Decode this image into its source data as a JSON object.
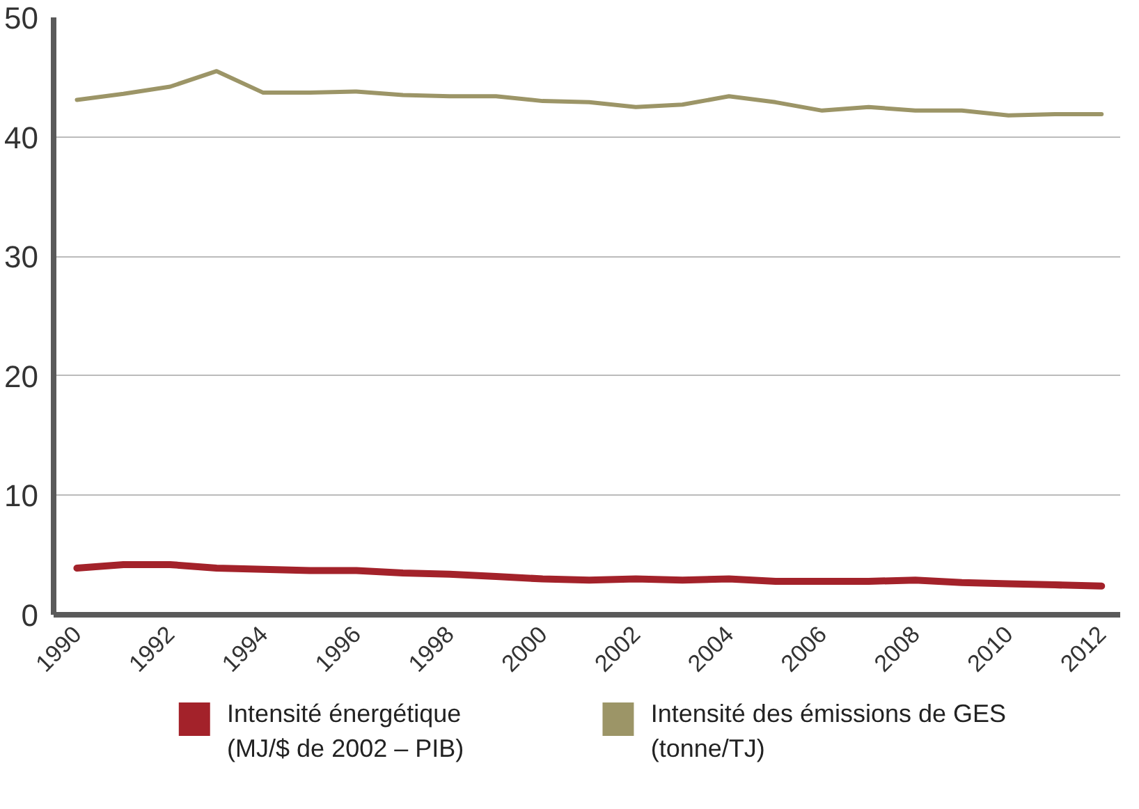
{
  "chart_data": {
    "type": "line",
    "x": [
      1990,
      1991,
      1992,
      1993,
      1994,
      1995,
      1996,
      1997,
      1998,
      1999,
      2000,
      2001,
      2002,
      2003,
      2004,
      2005,
      2006,
      2007,
      2008,
      2009,
      2010,
      2011,
      2012
    ],
    "series": [
      {
        "name": "Intensité énergétique\n(MJ/$ de 2002 – PIB)",
        "color": "#a3222a",
        "values": [
          3.9,
          4.2,
          4.2,
          3.9,
          3.8,
          3.7,
          3.7,
          3.5,
          3.4,
          3.2,
          3.0,
          2.9,
          3.0,
          2.9,
          3.0,
          2.8,
          2.8,
          2.8,
          2.9,
          2.7,
          2.6,
          2.5,
          2.4
        ]
      },
      {
        "name": "Intensité des émissions de GES\n(tonne/TJ)",
        "color": "#9c9567",
        "values": [
          43.1,
          43.6,
          44.2,
          45.5,
          43.7,
          43.7,
          43.8,
          43.5,
          43.4,
          43.4,
          43.0,
          42.9,
          42.5,
          42.7,
          43.4,
          42.9,
          42.2,
          42.5,
          42.2,
          42.2,
          41.8,
          41.9,
          41.9
        ]
      }
    ],
    "xlim": [
      1989.5,
      2012.4
    ],
    "xticks": [
      1990,
      1992,
      1994,
      1996,
      1998,
      2000,
      2002,
      2004,
      2006,
      2008,
      2010,
      2012
    ],
    "ylim": [
      0,
      50
    ],
    "yticks": [
      0,
      10,
      20,
      30,
      40,
      50
    ],
    "grid": "y",
    "legend": "bottom",
    "marker": "none",
    "line_style": "solid"
  }
}
